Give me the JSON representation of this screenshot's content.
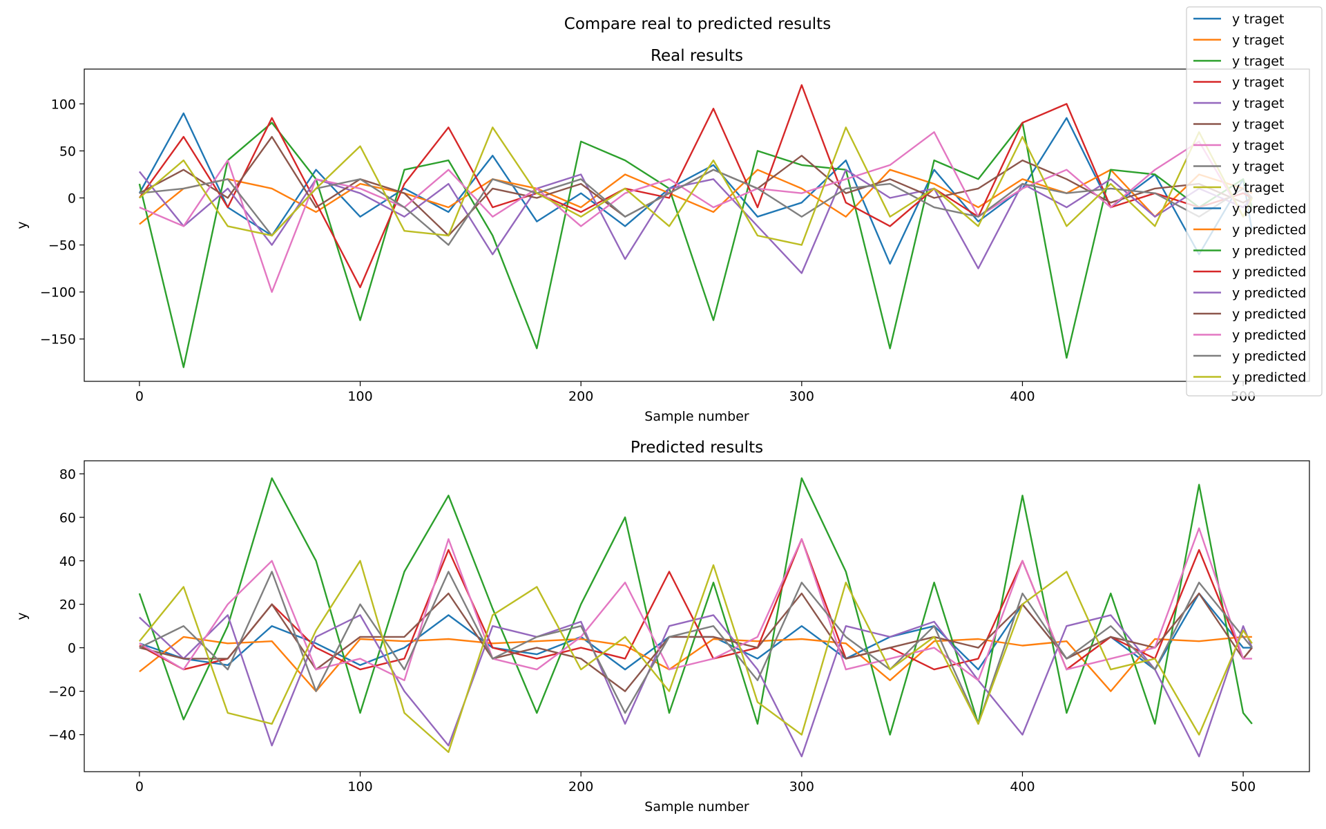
{
  "figure": {
    "suptitle": "Compare real to predicted results",
    "colors": [
      "#1f77b4",
      "#ff7f0e",
      "#2ca02c",
      "#d62728",
      "#9467bd",
      "#8c564b",
      "#e377c2",
      "#7f7f7f",
      "#bcbd22"
    ]
  },
  "legend": {
    "placement": "top-right",
    "entries": [
      {
        "label": "y traget",
        "color": "#1f77b4"
      },
      {
        "label": "y traget",
        "color": "#ff7f0e"
      },
      {
        "label": "y traget",
        "color": "#2ca02c"
      },
      {
        "label": "y traget",
        "color": "#d62728"
      },
      {
        "label": "y traget",
        "color": "#9467bd"
      },
      {
        "label": "y traget",
        "color": "#8c564b"
      },
      {
        "label": "y traget",
        "color": "#e377c2"
      },
      {
        "label": "y traget",
        "color": "#7f7f7f"
      },
      {
        "label": "y traget",
        "color": "#bcbd22"
      },
      {
        "label": "y predicted",
        "color": "#1f77b4"
      },
      {
        "label": "y predicted",
        "color": "#ff7f0e"
      },
      {
        "label": "y predicted",
        "color": "#2ca02c"
      },
      {
        "label": "y predicted",
        "color": "#d62728"
      },
      {
        "label": "y predicted",
        "color": "#9467bd"
      },
      {
        "label": "y predicted",
        "color": "#8c564b"
      },
      {
        "label": "y predicted",
        "color": "#e377c2"
      },
      {
        "label": "y predicted",
        "color": "#7f7f7f"
      },
      {
        "label": "y predicted",
        "color": "#bcbd22"
      }
    ]
  },
  "chart_data": [
    {
      "type": "line",
      "title": "Real results",
      "xlabel": "Sample number",
      "ylabel": "y",
      "xlim": [
        -25,
        530
      ],
      "ylim": [
        -195,
        137
      ],
      "xticks": [
        0,
        100,
        200,
        300,
        400,
        500
      ],
      "yticks": [
        -150,
        -100,
        -50,
        0,
        50,
        100
      ],
      "x": [
        0,
        20,
        40,
        60,
        80,
        100,
        120,
        140,
        160,
        180,
        200,
        220,
        240,
        260,
        280,
        300,
        320,
        340,
        360,
        380,
        400,
        420,
        440,
        460,
        480,
        500,
        504
      ],
      "series": [
        {
          "color": "#1f77b4",
          "values": [
            5,
            90,
            -10,
            -40,
            30,
            -20,
            10,
            -15,
            45,
            -25,
            5,
            -30,
            10,
            35,
            -20,
            -5,
            40,
            -70,
            30,
            -25,
            10,
            85,
            -10,
            25,
            -60,
            20,
            -35
          ]
        },
        {
          "color": "#ff7f0e",
          "values": [
            -28,
            10,
            20,
            10,
            -15,
            15,
            5,
            -10,
            20,
            10,
            -10,
            25,
            5,
            -15,
            30,
            10,
            -20,
            30,
            15,
            -10,
            20,
            5,
            30,
            -20,
            25,
            10,
            5
          ]
        },
        {
          "color": "#2ca02c",
          "values": [
            15,
            -180,
            40,
            80,
            20,
            -130,
            30,
            40,
            -40,
            -160,
            60,
            40,
            10,
            -130,
            50,
            35,
            30,
            -160,
            40,
            20,
            80,
            -170,
            30,
            25,
            -10,
            20,
            -10
          ]
        },
        {
          "color": "#d62728",
          "values": [
            0,
            65,
            -10,
            85,
            -5,
            -95,
            15,
            75,
            -10,
            5,
            -15,
            10,
            0,
            95,
            -10,
            120,
            -5,
            -30,
            10,
            -20,
            80,
            100,
            -10,
            5,
            -10,
            5,
            0
          ]
        },
        {
          "color": "#9467bd",
          "values": [
            28,
            -30,
            10,
            -50,
            20,
            5,
            -20,
            15,
            -60,
            10,
            25,
            -65,
            10,
            20,
            -30,
            -80,
            30,
            0,
            10,
            -75,
            15,
            -10,
            20,
            -20,
            10,
            -10,
            0
          ]
        },
        {
          "color": "#8c564b",
          "values": [
            5,
            30,
            0,
            65,
            -10,
            20,
            5,
            -40,
            10,
            0,
            15,
            -20,
            5,
            30,
            10,
            45,
            5,
            20,
            0,
            10,
            40,
            20,
            -5,
            10,
            15,
            -5,
            0
          ]
        },
        {
          "color": "#e377c2",
          "values": [
            -10,
            -30,
            40,
            -100,
            20,
            10,
            -10,
            30,
            -20,
            10,
            -30,
            5,
            20,
            -10,
            10,
            5,
            20,
            35,
            70,
            -20,
            10,
            30,
            -10,
            30,
            60,
            -20,
            0
          ]
        },
        {
          "color": "#7f7f7f",
          "values": [
            5,
            10,
            20,
            -40,
            10,
            20,
            -10,
            -50,
            20,
            5,
            20,
            -20,
            5,
            30,
            10,
            -20,
            10,
            15,
            -10,
            -20,
            15,
            5,
            10,
            5,
            -20,
            10,
            0
          ]
        },
        {
          "color": "#bcbd22",
          "values": [
            0,
            40,
            -30,
            -40,
            10,
            55,
            -35,
            -40,
            75,
            5,
            -20,
            10,
            -30,
            40,
            -40,
            -50,
            75,
            -20,
            10,
            -30,
            65,
            -30,
            15,
            -30,
            70,
            -20,
            0
          ]
        }
      ]
    },
    {
      "type": "line",
      "title": "Predicted results",
      "xlabel": "Sample number",
      "ylabel": "y",
      "xlim": [
        -25,
        530
      ],
      "ylim": [
        -57,
        86
      ],
      "xticks": [
        0,
        100,
        200,
        300,
        400,
        500
      ],
      "yticks": [
        -40,
        -20,
        0,
        20,
        40,
        60,
        80
      ],
      "x": [
        0,
        20,
        40,
        60,
        80,
        100,
        120,
        140,
        160,
        180,
        200,
        220,
        240,
        260,
        280,
        300,
        320,
        340,
        360,
        380,
        400,
        420,
        440,
        460,
        480,
        500,
        504
      ],
      "series": [
        {
          "color": "#1f77b4",
          "values": [
            2,
            -5,
            -8,
            10,
            2,
            -8,
            0,
            15,
            0,
            -3,
            5,
            -10,
            5,
            5,
            -5,
            10,
            -5,
            5,
            10,
            -10,
            20,
            -5,
            5,
            -10,
            25,
            0,
            0
          ]
        },
        {
          "color": "#ff7f0e",
          "values": [
            -11,
            5,
            2,
            3,
            -20,
            4,
            3,
            4,
            2,
            3,
            4,
            1,
            -10,
            4,
            3,
            4,
            2,
            -15,
            3,
            4,
            1,
            3,
            -20,
            4,
            3,
            5,
            5
          ]
        },
        {
          "color": "#2ca02c",
          "values": [
            25,
            -33,
            10,
            78,
            40,
            -30,
            35,
            70,
            18,
            -30,
            20,
            60,
            -30,
            30,
            -35,
            78,
            35,
            -40,
            30,
            -35,
            70,
            -30,
            25,
            -35,
            75,
            -30,
            -35
          ]
        },
        {
          "color": "#d62728",
          "values": [
            1,
            -10,
            -5,
            20,
            0,
            -10,
            -5,
            45,
            0,
            -5,
            0,
            -5,
            35,
            -5,
            0,
            50,
            -5,
            0,
            -10,
            -5,
            40,
            -10,
            5,
            -5,
            45,
            -5,
            0
          ]
        },
        {
          "color": "#9467bd",
          "values": [
            14,
            -5,
            15,
            -45,
            5,
            15,
            -20,
            -45,
            10,
            5,
            12,
            -35,
            10,
            15,
            -10,
            -50,
            10,
            5,
            12,
            -15,
            -40,
            10,
            15,
            -10,
            -50,
            10,
            0
          ]
        },
        {
          "color": "#8c564b",
          "values": [
            0,
            -5,
            -5,
            20,
            -10,
            5,
            5,
            25,
            -5,
            0,
            -5,
            -20,
            5,
            5,
            0,
            25,
            -5,
            0,
            5,
            0,
            20,
            -5,
            5,
            0,
            25,
            -5,
            0
          ]
        },
        {
          "color": "#e377c2",
          "values": [
            2,
            -10,
            20,
            40,
            -10,
            -5,
            -15,
            50,
            -5,
            -10,
            5,
            30,
            -10,
            -5,
            5,
            50,
            -10,
            -5,
            0,
            -15,
            40,
            -10,
            -5,
            0,
            55,
            -5,
            -5
          ]
        },
        {
          "color": "#7f7f7f",
          "values": [
            0,
            10,
            -10,
            35,
            -20,
            20,
            -10,
            35,
            -5,
            5,
            10,
            -30,
            5,
            10,
            -15,
            30,
            5,
            -10,
            10,
            -35,
            25,
            -5,
            10,
            -10,
            30,
            5,
            0
          ]
        },
        {
          "color": "#bcbd22",
          "values": [
            3,
            28,
            -30,
            -35,
            8,
            40,
            -30,
            -48,
            15,
            28,
            -10,
            5,
            -20,
            38,
            -25,
            -40,
            30,
            -10,
            5,
            -35,
            20,
            35,
            -10,
            -5,
            -40,
            8,
            2
          ]
        }
      ]
    }
  ]
}
